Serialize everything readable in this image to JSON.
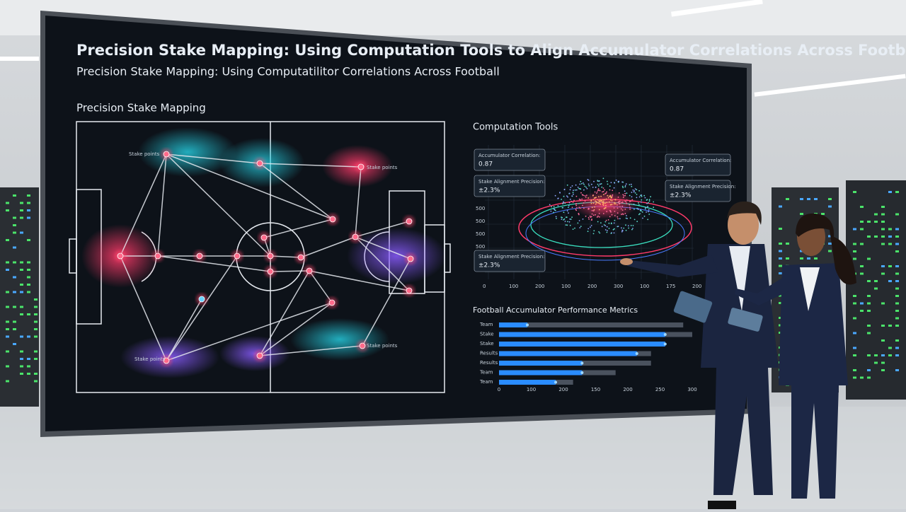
{
  "screen": {
    "title": "Precision Stake Mapping: Using Computation Tools to Align Accumulator Correlations Across Football",
    "subtitle": "Precision Stake Mapping: Using Computatilitor Correlations Across Football",
    "pitch": {
      "heading": "Precision Stake Mapping",
      "labels": [
        "Stake points",
        "Stake points",
        "Stake points",
        "Stake points"
      ]
    },
    "tools": {
      "heading": "Computation Tools",
      "cards": [
        {
          "label": "Accumulator Correlation:",
          "value": "0.87"
        },
        {
          "label": "Stake Alignment Precision:",
          "value": "±2.3%"
        },
        {
          "label": "Stake Alignment Precision:",
          "value": "±2.3%"
        },
        {
          "label": "Accumulator Correlation:",
          "value": "0.87"
        },
        {
          "label": "Stake Alignment Precision:",
          "value": "±2.3%"
        }
      ],
      "y_axis": [
        "500",
        "500",
        "500",
        "500"
      ],
      "x_axis": [
        "0",
        "100",
        "200",
        "100",
        "200",
        "300",
        "100",
        "175",
        "200"
      ]
    },
    "metrics": {
      "heading": "Football Accumulator Performance Metrics",
      "xlim": [
        0,
        300
      ],
      "x_axis": [
        "0",
        "100",
        "200",
        "150",
        "200",
        "250",
        "300"
      ],
      "rows": [
        {
          "label": "Team",
          "value": 44,
          "total": 286
        },
        {
          "label": "Stake",
          "value": 258,
          "total": 300
        },
        {
          "label": "Stake",
          "value": 258,
          "total": null
        },
        {
          "label": "Results",
          "value": 214,
          "total": 236
        },
        {
          "label": "Results",
          "value": 129,
          "total": 236
        },
        {
          "label": "Team",
          "value": 129,
          "total": 181
        },
        {
          "label": "Team",
          "value": 88,
          "total": 115
        }
      ]
    }
  }
}
